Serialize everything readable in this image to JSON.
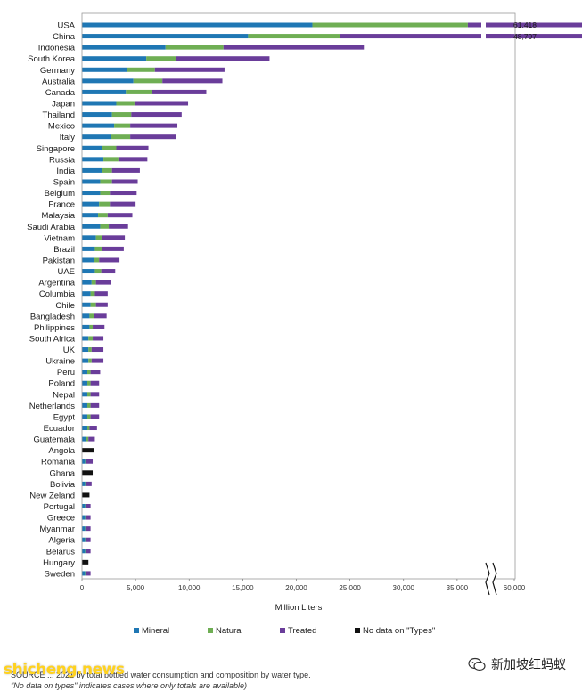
{
  "chart_data": {
    "type": "bar",
    "orientation": "horizontal",
    "stacked": true,
    "xlabel": "Million Liters",
    "x_ticks": [
      "0",
      "5,000",
      "10,000",
      "15,000",
      "20,000",
      "25,000",
      "30,000",
      "35,000",
      "60,000"
    ],
    "axis_break": "between 35,000 and 60,000",
    "grid": false,
    "legend_position": "bottom",
    "colors": {
      "Mineral": "#1f77b4",
      "Natural": "#6fae54",
      "Treated": "#6a3d9a",
      "No data on \"Types\"": "#111111"
    },
    "series_names": [
      "Mineral",
      "Natural",
      "Treated",
      "No data on \"Types\""
    ],
    "categories": [
      "USA",
      "China",
      "Indonesia",
      "South Korea",
      "Germany",
      "Australia",
      "Canada",
      "Japan",
      "Thailand",
      "Mexico",
      "Italy",
      "Singapore",
      "Russia",
      "India",
      "Spain",
      "Belgium",
      "France",
      "Malaysia",
      "Saudi Arabia",
      "Vietnam",
      "Brazil",
      "Pakistan",
      "UAE",
      "Argentina",
      "Columbia",
      "Chile",
      "Bangladesh",
      "Philippines",
      "South Africa",
      "UK",
      "Ukraine",
      "Peru",
      "Poland",
      "Nepal",
      "Netherlands",
      "Egypt",
      "Ecuador",
      "Guatemala",
      "Angola",
      "Romania",
      "Ghana",
      "Bolivia",
      "New Zeland",
      "Portugal",
      "Greece",
      "Myanmar",
      "Algeria",
      "Belarus",
      "Hungary",
      "Sweden"
    ],
    "series": [
      {
        "name": "Mineral",
        "values": [
          21500,
          15500,
          7800,
          6000,
          4200,
          4800,
          4100,
          3200,
          2800,
          3000,
          2700,
          1900,
          2000,
          1900,
          1700,
          1700,
          1600,
          1500,
          1700,
          1300,
          1200,
          1100,
          1200,
          900,
          800,
          800,
          700,
          700,
          600,
          600,
          600,
          500,
          500,
          500,
          500,
          500,
          500,
          400,
          0,
          300,
          0,
          300,
          0,
          300,
          300,
          300,
          300,
          300,
          0,
          300
        ]
      },
      {
        "name": "Natural",
        "values": [
          14500,
          8600,
          5400,
          2800,
          2600,
          2700,
          2400,
          1700,
          1800,
          1500,
          1800,
          1300,
          1400,
          900,
          1100,
          900,
          1000,
          900,
          800,
          600,
          700,
          500,
          600,
          400,
          400,
          500,
          400,
          300,
          400,
          300,
          300,
          300,
          300,
          300,
          300,
          300,
          200,
          200,
          0,
          100,
          0,
          100,
          0,
          100,
          100,
          100,
          100,
          100,
          0,
          100
        ]
      },
      {
        "name": "Treated",
        "values": [
          25418,
          24697,
          13100,
          8700,
          6500,
          5600,
          5100,
          5000,
          4700,
          4400,
          4300,
          3000,
          2700,
          2600,
          2400,
          2500,
          2400,
          2300,
          1800,
          2100,
          2000,
          1900,
          1300,
          1400,
          1200,
          1100,
          1200,
          1100,
          1000,
          1100,
          1100,
          900,
          800,
          800,
          800,
          800,
          700,
          600,
          0,
          600,
          0,
          500,
          0,
          400,
          400,
          400,
          400,
          400,
          0,
          400
        ]
      },
      {
        "name": "No data on \"Types\"",
        "values": [
          0,
          0,
          0,
          0,
          0,
          0,
          0,
          0,
          0,
          0,
          0,
          0,
          0,
          0,
          0,
          0,
          0,
          0,
          0,
          0,
          0,
          0,
          0,
          0,
          0,
          0,
          0,
          0,
          0,
          0,
          0,
          0,
          0,
          0,
          0,
          0,
          0,
          0,
          1100,
          0,
          1000,
          0,
          700,
          0,
          0,
          0,
          0,
          0,
          600,
          0
        ]
      }
    ],
    "total_labels": [
      {
        "category": "USA",
        "text": "61,418"
      },
      {
        "category": "China",
        "text": "48,797"
      }
    ]
  },
  "footer": {
    "line1": "SOURCE ... 2021 by total bottled water consumption and composition by water type.",
    "line2": "\"No data on types\" indicates cases where only totals are available)"
  },
  "watermark": {
    "left_text": "shicheng.news",
    "right_text": "新加坡红蚂蚁"
  }
}
